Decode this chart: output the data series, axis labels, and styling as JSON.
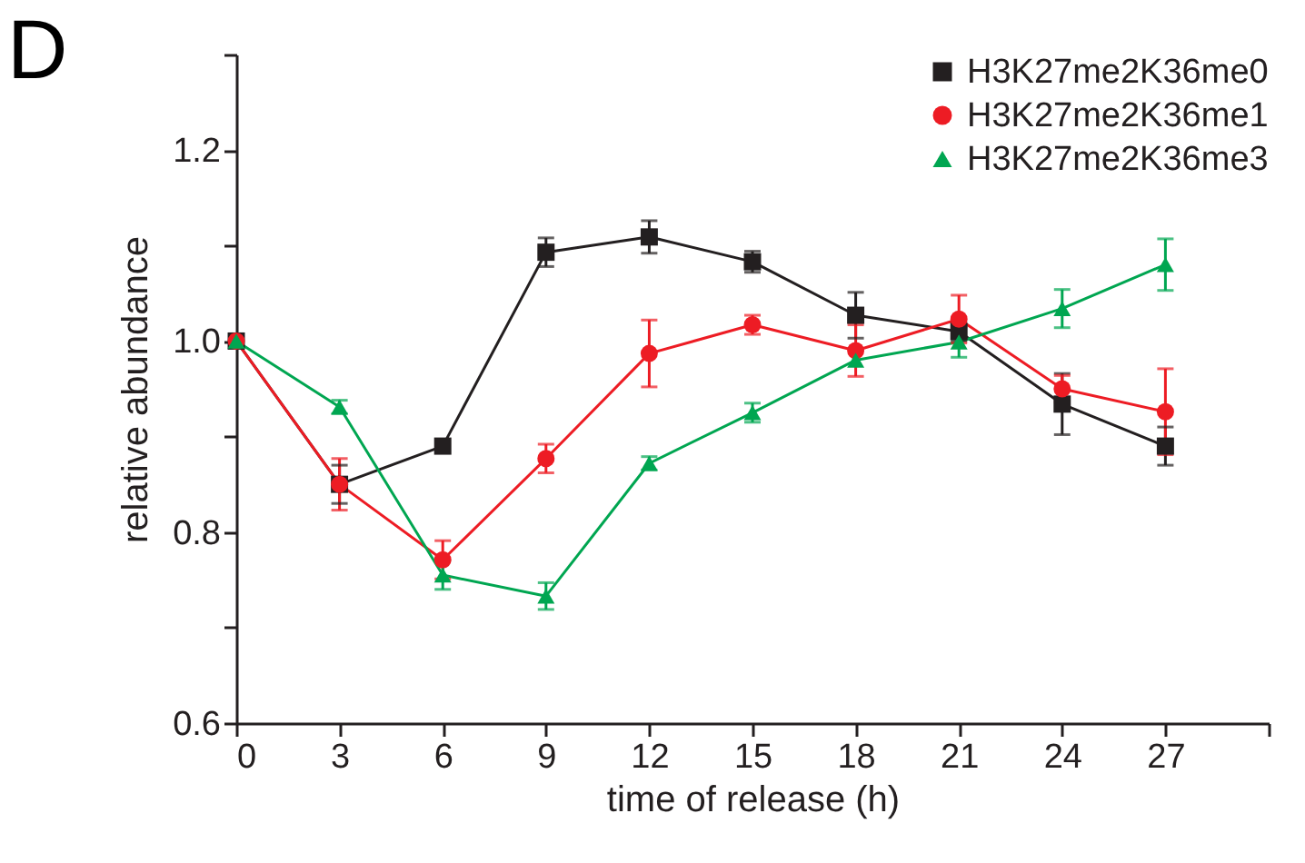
{
  "chart_data": {
    "type": "line",
    "xlabel": "time of release (h)",
    "ylabel": "relative abundance",
    "annotations": [
      "D"
    ],
    "x": [
      0,
      3,
      6,
      9,
      12,
      15,
      18,
      21,
      24,
      27
    ],
    "xlim": [
      0,
      30
    ],
    "xticks": [
      0,
      3,
      6,
      9,
      12,
      15,
      18,
      21,
      24,
      27,
      {
        "value": 30,
        "label": null
      }
    ],
    "ylim": [
      0.6,
      1.3
    ],
    "yticks": [
      0.6,
      {
        "value": 0.7,
        "label": null
      },
      0.8,
      {
        "value": 0.9,
        "label": null
      },
      "1.0",
      {
        "value": 1.1,
        "label": null
      },
      1.2,
      {
        "value": 1.3,
        "label": null
      }
    ],
    "grid": false,
    "legend": "top right",
    "series": [
      {
        "name": "H3K27me2K36me0",
        "color": "#231f20",
        "marker": "square",
        "values": [
          1.0,
          0.85,
          0.89,
          1.093,
          1.109,
          1.083,
          1.027,
          1.01,
          0.934,
          0.89
        ],
        "errors": [
          null,
          0.02,
          null,
          0.015,
          0.017,
          0.011,
          0.024,
          0.01,
          0.032,
          0.02
        ]
      },
      {
        "name": "H3K27me2K36me1",
        "color": "#ed1c24",
        "marker": "circle",
        "values": [
          1.0,
          0.85,
          0.771,
          0.877,
          0.987,
          1.017,
          0.99,
          1.023,
          0.95,
          0.926
        ],
        "errors": [
          null,
          0.027,
          0.02,
          0.015,
          0.035,
          0.01,
          0.027,
          0.025,
          0.014,
          0.045
        ]
      },
      {
        "name": "H3K27me2K36me3",
        "color": "#00a651",
        "marker": "triangle",
        "values": [
          1.0,
          0.931,
          0.755,
          0.733,
          0.872,
          0.925,
          0.98,
          0.999,
          1.034,
          1.08
        ],
        "errors": [
          null,
          0.007,
          0.015,
          0.014,
          0.007,
          0.01,
          null,
          0.016,
          0.02,
          0.027
        ]
      }
    ]
  }
}
